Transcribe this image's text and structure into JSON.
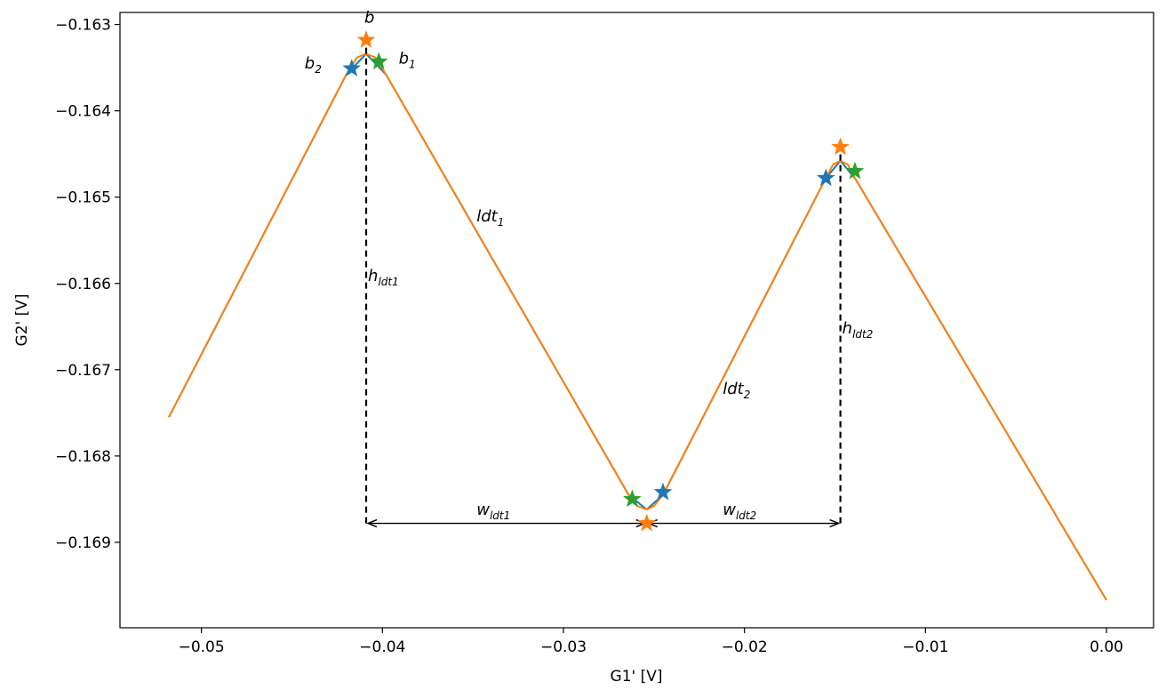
{
  "chart_data": {
    "type": "line",
    "xlabel": "G1' [V]",
    "ylabel": "G2' [V]",
    "xlim": [
      -0.0545,
      0.0026
    ],
    "ylim": [
      -0.16999,
      -0.16286
    ],
    "x_ticks": [
      -0.05,
      -0.04,
      -0.03,
      -0.02,
      -0.01,
      0.0
    ],
    "x_tick_labels": [
      "−0.05",
      "−0.04",
      "−0.03",
      "−0.02",
      "−0.01",
      "0.00"
    ],
    "y_ticks": [
      -0.163,
      -0.164,
      -0.165,
      -0.166,
      -0.167,
      -0.168,
      -0.169
    ],
    "y_tick_labels": [
      "−0.163",
      "−0.164",
      "−0.165",
      "−0.166",
      "−0.167",
      "−0.168",
      "−0.169"
    ],
    "grid": false,
    "series": [
      {
        "color": "#1f77b4",
        "x": [
          -0.0518,
          -0.042,
          -0.0409,
          -0.0398,
          -0.0264,
          -0.0254,
          -0.0245,
          -0.0155,
          -0.0147,
          -0.0139,
          0.0
        ],
        "y": [
          -0.16755,
          -0.16358,
          -0.16334,
          -0.16358,
          -0.16845,
          -0.16862,
          -0.16845,
          -0.16478,
          -0.16458,
          -0.16478,
          -0.16967
        ]
      },
      {
        "color": "#ff7f0e",
        "x": [
          -0.0518,
          -0.042,
          -0.0414,
          -0.0409,
          -0.0404,
          -0.0398,
          -0.0264,
          -0.0259,
          -0.0254,
          -0.025,
          -0.0245,
          -0.0155,
          -0.0151,
          -0.0147,
          -0.0143,
          -0.0139,
          0.0
        ],
        "y": [
          -0.16755,
          -0.16358,
          -0.16338,
          -0.16334,
          -0.16338,
          -0.16358,
          -0.16845,
          -0.16858,
          -0.16862,
          -0.16858,
          -0.16845,
          -0.16478,
          -0.16462,
          -0.16458,
          -0.16462,
          -0.16478,
          -0.16967
        ]
      }
    ],
    "markers": [
      {
        "color": "#1f77b4",
        "points": [
          [
            -0.0417,
            -0.16351
          ],
          [
            -0.0245,
            -0.16842
          ],
          [
            -0.0155,
            -0.16478
          ]
        ]
      },
      {
        "color": "#ff7f0e",
        "points": [
          [
            -0.0409,
            -0.16318
          ],
          [
            -0.0254,
            -0.16878
          ],
          [
            -0.0147,
            -0.16442
          ]
        ]
      },
      {
        "color": "#2ca02c",
        "points": [
          [
            -0.0402,
            -0.16343
          ],
          [
            -0.0262,
            -0.1685
          ],
          [
            -0.0139,
            -0.1647
          ]
        ]
      }
    ],
    "vlines": [
      {
        "x": -0.0409,
        "y0": -0.16878,
        "y1": -0.16318
      },
      {
        "x": -0.0147,
        "y0": -0.16878,
        "y1": -0.16442
      }
    ],
    "arrows": [
      {
        "x0": -0.0409,
        "x1": -0.0254,
        "y": -0.16878
      },
      {
        "x0": -0.0254,
        "x1": -0.0147,
        "y": -0.16878
      }
    ],
    "annotations": [
      {
        "base": "b",
        "sub": "",
        "x": -0.041,
        "y": -0.16298
      },
      {
        "base": "b",
        "sub": "2",
        "x": -0.0443,
        "y": -0.16351
      },
      {
        "base": "b",
        "sub": "1",
        "x": -0.0391,
        "y": -0.16345
      },
      {
        "base": "ldt",
        "sub": "1",
        "x": -0.0348,
        "y": -0.16528
      },
      {
        "base": "h",
        "sub": "ldt1",
        "x": -0.0408,
        "y": -0.16597
      },
      {
        "base": "h",
        "sub": "ldt2",
        "x": -0.0146,
        "y": -0.16658
      },
      {
        "base": "ldt",
        "sub": "2",
        "x": -0.0212,
        "y": -0.16728
      },
      {
        "base": "w",
        "sub": "ldt1",
        "x": -0.0348,
        "y": -0.16868
      },
      {
        "base": "w",
        "sub": "ldt2",
        "x": -0.0212,
        "y": -0.16868
      }
    ]
  }
}
